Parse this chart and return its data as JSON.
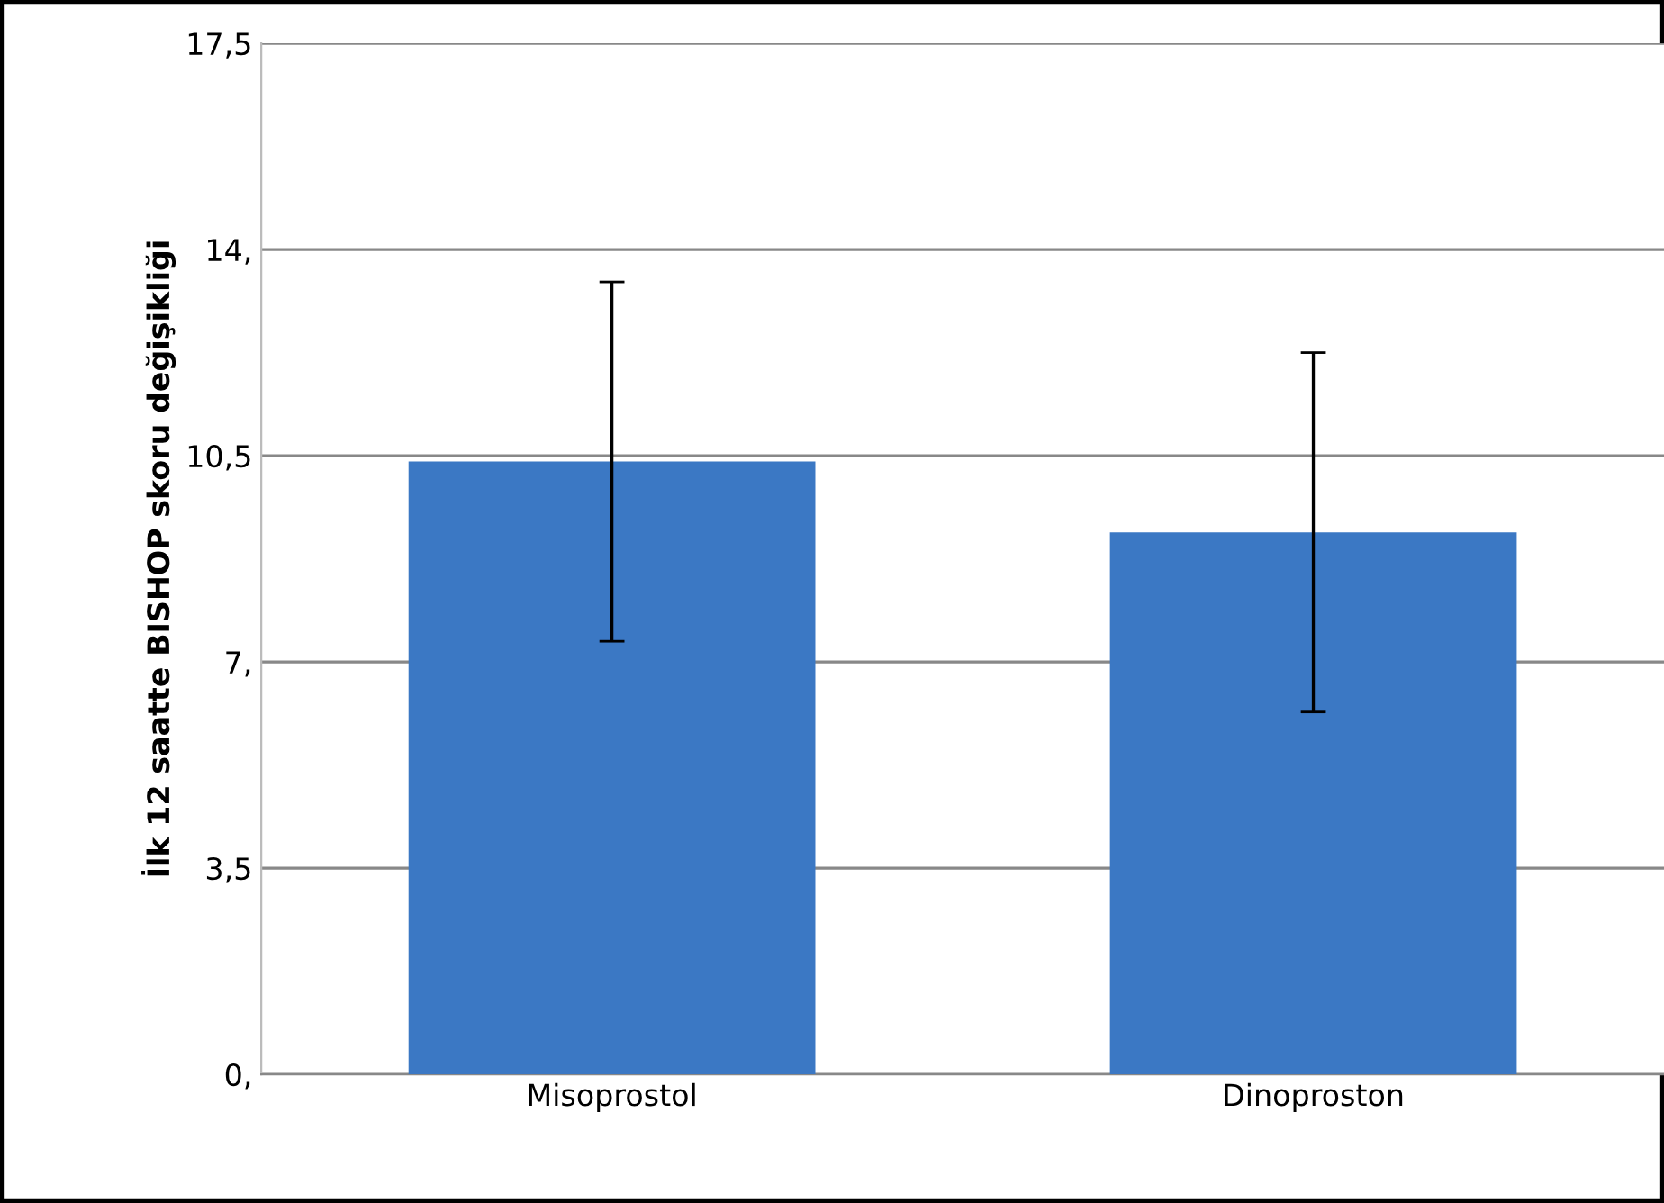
{
  "chart_data": {
    "type": "bar",
    "ylabel": "İlk 12 saatte BISHOP skoru değişikliği",
    "categories": [
      "Misoprostol",
      "Dinoproston"
    ],
    "values": [
      10.4,
      9.2
    ],
    "errors": [
      3.05,
      3.05
    ],
    "color": "#3b78c4",
    "ylim": [
      0,
      17.5
    ],
    "yticks": [
      {
        "value": 0,
        "label": "0,"
      },
      {
        "value": 3.5,
        "label": "3,5"
      },
      {
        "value": 7,
        "label": "7,"
      },
      {
        "value": 10.5,
        "label": "10,5"
      },
      {
        "value": 14,
        "label": "14,"
      },
      {
        "value": 17.5,
        "label": "17,5"
      }
    ],
    "grid": "y"
  }
}
